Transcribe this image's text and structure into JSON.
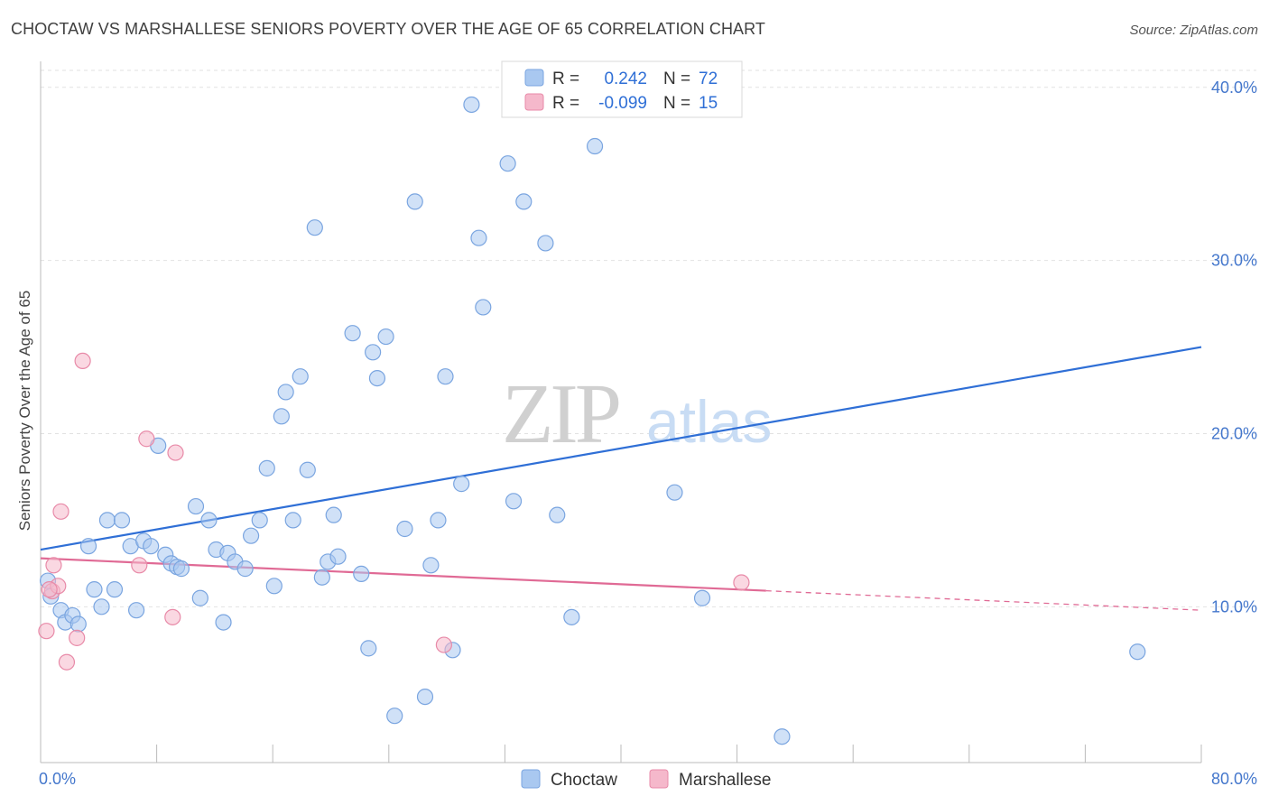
{
  "title": "CHOCTAW VS MARSHALLESE SENIORS POVERTY OVER THE AGE OF 65 CORRELATION CHART",
  "source": "Source: ZipAtlas.com",
  "watermark": {
    "zip": "ZIP",
    "atlas": "atlas"
  },
  "legend": {
    "r_label": "R =",
    "n_label": "N =",
    "rows": [
      {
        "name": "Choctaw",
        "r": "0.242",
        "n": "72",
        "color": "#a9c8f0"
      },
      {
        "name": "Marshallese",
        "r": "-0.099",
        "n": "15",
        "color": "#f5b8cb"
      }
    ]
  },
  "chart_data": {
    "type": "scatter",
    "title": "CHOCTAW VS MARSHALLESE SENIORS POVERTY OVER THE AGE OF 65 CORRELATION CHART",
    "xlabel": "",
    "ylabel": "Seniors Poverty Over the Age of 65",
    "xlim": [
      0,
      80
    ],
    "ylim": [
      1,
      41.5
    ],
    "x_tick_labels": [
      "0.0%",
      "80.0%"
    ],
    "y_ticks": [
      10,
      20,
      30,
      40
    ],
    "y_tick_labels": [
      "10.0%",
      "20.0%",
      "30.0%",
      "40.0%"
    ],
    "series": [
      {
        "name": "Choctaw",
        "color": "#a9c8f0",
        "stroke": "#7aa5e0",
        "trend": {
          "x": [
            0,
            80
          ],
          "y": [
            13.3,
            25.0
          ],
          "color": "#2f6fd6"
        },
        "points": [
          [
            0.5,
            11.5
          ],
          [
            0.7,
            10.6
          ],
          [
            1.4,
            9.8
          ],
          [
            1.7,
            9.1
          ],
          [
            2.2,
            9.5
          ],
          [
            2.6,
            9.0
          ],
          [
            3.3,
            13.5
          ],
          [
            3.7,
            11.0
          ],
          [
            4.2,
            10.0
          ],
          [
            4.6,
            15.0
          ],
          [
            5.1,
            11.0
          ],
          [
            5.6,
            15.0
          ],
          [
            6.2,
            13.5
          ],
          [
            6.6,
            9.8
          ],
          [
            7.1,
            13.8
          ],
          [
            7.6,
            13.5
          ],
          [
            8.1,
            19.3
          ],
          [
            8.6,
            13.0
          ],
          [
            9.0,
            12.5
          ],
          [
            9.4,
            12.3
          ],
          [
            9.7,
            12.2
          ],
          [
            10.7,
            15.8
          ],
          [
            11.0,
            10.5
          ],
          [
            11.6,
            15.0
          ],
          [
            12.1,
            13.3
          ],
          [
            12.6,
            9.1
          ],
          [
            12.9,
            13.1
          ],
          [
            13.4,
            12.6
          ],
          [
            14.1,
            12.2
          ],
          [
            14.5,
            14.1
          ],
          [
            15.1,
            15.0
          ],
          [
            15.6,
            18.0
          ],
          [
            16.1,
            11.2
          ],
          [
            16.6,
            21.0
          ],
          [
            16.9,
            22.4
          ],
          [
            17.4,
            15.0
          ],
          [
            17.9,
            23.3
          ],
          [
            18.4,
            17.9
          ],
          [
            18.9,
            31.9
          ],
          [
            19.4,
            11.7
          ],
          [
            19.8,
            12.6
          ],
          [
            20.2,
            15.3
          ],
          [
            20.5,
            12.9
          ],
          [
            21.5,
            25.8
          ],
          [
            22.1,
            11.9
          ],
          [
            22.6,
            7.6
          ],
          [
            22.9,
            24.7
          ],
          [
            23.2,
            23.2
          ],
          [
            23.8,
            25.6
          ],
          [
            24.4,
            3.7
          ],
          [
            25.1,
            14.5
          ],
          [
            25.8,
            33.4
          ],
          [
            26.5,
            4.8
          ],
          [
            26.9,
            12.4
          ],
          [
            27.4,
            15.0
          ],
          [
            27.9,
            23.3
          ],
          [
            28.4,
            7.5
          ],
          [
            29.0,
            17.1
          ],
          [
            29.7,
            39.0
          ],
          [
            30.2,
            31.3
          ],
          [
            30.5,
            27.3
          ],
          [
            32.2,
            35.6
          ],
          [
            32.6,
            16.1
          ],
          [
            33.3,
            33.4
          ],
          [
            34.8,
            31.0
          ],
          [
            35.6,
            15.3
          ],
          [
            36.6,
            9.4
          ],
          [
            38.2,
            36.6
          ],
          [
            43.7,
            16.6
          ],
          [
            45.6,
            10.5
          ],
          [
            51.1,
            2.5
          ],
          [
            75.6,
            7.4
          ]
        ]
      },
      {
        "name": "Marshallese",
        "color": "#f5b8cb",
        "stroke": "#e88aa8",
        "trend": {
          "x": [
            0,
            80
          ],
          "y": [
            12.8,
            9.8
          ],
          "solid_until": 50,
          "color": "#e06a95"
        },
        "points": [
          [
            0.4,
            8.6
          ],
          [
            0.8,
            10.9
          ],
          [
            0.9,
            12.4
          ],
          [
            1.2,
            11.2
          ],
          [
            1.4,
            15.5
          ],
          [
            1.8,
            6.8
          ],
          [
            2.5,
            8.2
          ],
          [
            2.9,
            24.2
          ],
          [
            6.8,
            12.4
          ],
          [
            7.3,
            19.7
          ],
          [
            9.1,
            9.4
          ],
          [
            9.3,
            18.9
          ],
          [
            27.8,
            7.8
          ],
          [
            48.3,
            11.4
          ],
          [
            0.6,
            11.0
          ]
        ]
      }
    ]
  },
  "bottom_legend": [
    {
      "label": "Choctaw",
      "color": "#a9c8f0"
    },
    {
      "label": "Marshallese",
      "color": "#f5b8cb"
    }
  ]
}
